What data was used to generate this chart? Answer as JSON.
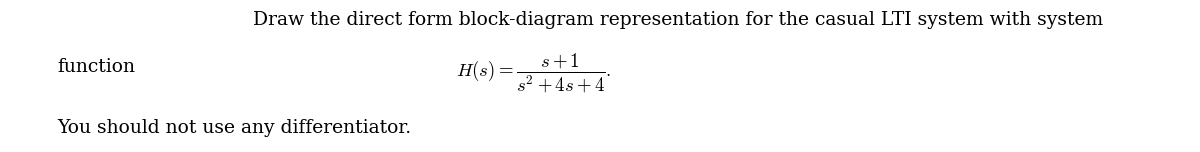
{
  "line1": "Draw the direct form block-diagram representation for the casual LTI system with system",
  "line2_left": "function",
  "line3_left": "You should not use any differentiator.",
  "fraction_expr": "$H(s) = \\dfrac{s+1}{s^2+4s+4}.$",
  "bg_color": "#ffffff",
  "text_color": "#000000",
  "font_size_text": 13.5,
  "font_size_math": 13.5,
  "fig_width": 12.0,
  "fig_height": 1.52,
  "dpi": 100
}
